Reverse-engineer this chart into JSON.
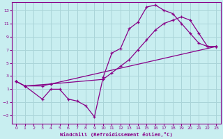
{
  "xlabel": "Windchill (Refroidissement éolien,°C)",
  "background_color": "#c8eef0",
  "grid_color": "#aad4d8",
  "line_color": "#880088",
  "xlim": [
    -0.5,
    23.5
  ],
  "ylim": [
    -4.2,
    14.2
  ],
  "xticks": [
    0,
    1,
    2,
    3,
    4,
    5,
    6,
    7,
    8,
    9,
    10,
    11,
    12,
    13,
    14,
    15,
    16,
    17,
    18,
    19,
    20,
    21,
    22,
    23
  ],
  "yticks": [
    -3,
    -1,
    1,
    3,
    5,
    7,
    9,
    11,
    13
  ],
  "line1_x": [
    0,
    1,
    3,
    4,
    5,
    6,
    7,
    8,
    9,
    10,
    11,
    12,
    13,
    14,
    15,
    16,
    17,
    18,
    19,
    20,
    21,
    22,
    23
  ],
  "line1_y": [
    2.2,
    1.5,
    -0.5,
    1.0,
    1.0,
    -0.5,
    -0.8,
    -1.5,
    -3.2,
    2.8,
    6.5,
    7.2,
    10.2,
    11.2,
    13.5,
    13.8,
    13.0,
    12.5,
    11.0,
    9.5,
    8.0,
    7.5,
    7.5
  ],
  "line2_x": [
    0,
    1,
    3,
    4,
    10,
    11,
    12,
    13,
    14,
    15,
    16,
    17,
    18,
    19,
    20,
    21,
    22,
    23
  ],
  "line2_y": [
    2.2,
    1.5,
    1.5,
    1.8,
    2.5,
    3.5,
    4.5,
    5.5,
    7.0,
    8.5,
    10.0,
    11.0,
    11.5,
    12.0,
    11.5,
    9.5,
    7.5,
    7.5
  ],
  "line3_x": [
    0,
    1,
    4,
    23
  ],
  "line3_y": [
    2.2,
    1.5,
    1.8,
    7.5
  ]
}
